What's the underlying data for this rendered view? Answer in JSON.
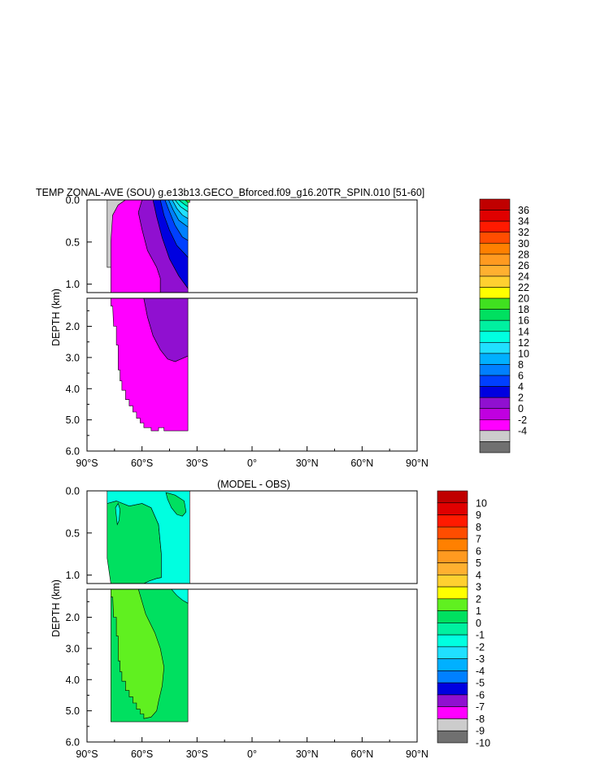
{
  "title": "TEMP ZONAL-AVE (SOU) g.e13b13.GECO_Bforced.f09_g16.20TR_SPIN.010 [51-60]",
  "chart_data": [
    {
      "type": "contour",
      "title": "TEMP ZONAL-AVE (SOU) g.e13b13.GECO_Bforced.f09_g16.20TR_SPIN.010 [51-60]",
      "ylabel": "DEPTH (km)",
      "x_ticks": [
        "90°S",
        "60°S",
        "30°S",
        "0°",
        "30°N",
        "60°N",
        "90°N"
      ],
      "y_ticks_upper": [
        "0.0",
        "0.5",
        "1.0"
      ],
      "y_ticks_lower": [
        "2.0",
        "3.0",
        "4.0",
        "5.0",
        "6.0"
      ],
      "xlim": [
        -90,
        90
      ],
      "ylim_upper": [
        0,
        1.1
      ],
      "ylim_lower": [
        1.1,
        6.0
      ],
      "colorbar_levels": [
        "36",
        "34",
        "32",
        "30",
        "28",
        "26",
        "24",
        "22",
        "20",
        "18",
        "16",
        "14",
        "12",
        "10",
        "8",
        "6",
        "4",
        "2",
        "0",
        "-2",
        "-4"
      ],
      "colorbar_colors": [
        "#c00000",
        "#e00000",
        "#ff1a00",
        "#ff4d00",
        "#ff8000",
        "#ff9a20",
        "#ffb030",
        "#ffd030",
        "#ffff00",
        "#40e020",
        "#00e060",
        "#00f0a0",
        "#00ffe0",
        "#20e0ff",
        "#00b0ff",
        "#0080ff",
        "#0040ff",
        "#0000e0",
        "#9010d0",
        "#c000e0",
        "#ff00ff",
        "#cccccc",
        "#707070"
      ],
      "regions_upper": [
        {
          "level": "-2 to 0",
          "color": "#cccccc",
          "points": [
            [
              -79,
              0
            ],
            [
              -69,
              0
            ],
            [
              -73,
              0.06
            ],
            [
              -76,
              0.18
            ],
            [
              -76,
              0.8
            ],
            [
              -79,
              0.8
            ]
          ]
        },
        {
          "level": "0 to 2",
          "color": "#ff00ff",
          "points": [
            [
              -69,
              0
            ],
            [
              -60,
              0
            ],
            [
              -62,
              0.15
            ],
            [
              -60,
              0.35
            ],
            [
              -57,
              0.6
            ],
            [
              -52,
              0.8
            ],
            [
              -50,
              0.93
            ],
            [
              -50,
              1.1
            ],
            [
              -77,
              1.1
            ],
            [
              -77,
              0.5
            ],
            [
              -76,
              0.18
            ],
            [
              -73,
              0.06
            ]
          ]
        },
        {
          "level": "2 to 4",
          "color": "#9010d0",
          "points": [
            [
              -60,
              0
            ],
            [
              -54,
              0
            ],
            [
              -52,
              0.2
            ],
            [
              -49,
              0.45
            ],
            [
              -45,
              0.7
            ],
            [
              -40,
              0.9
            ],
            [
              -35,
              1.05
            ],
            [
              -35,
              1.1
            ],
            [
              -50,
              1.1
            ],
            [
              -50,
              0.93
            ],
            [
              -52,
              0.8
            ],
            [
              -57,
              0.6
            ],
            [
              -60,
              0.35
            ],
            [
              -62,
              0.15
            ]
          ]
        },
        {
          "level": "4 to 6",
          "color": "#0000e0",
          "points": [
            [
              -54,
              0
            ],
            [
              -50,
              0
            ],
            [
              -48,
              0.18
            ],
            [
              -45,
              0.36
            ],
            [
              -41,
              0.54
            ],
            [
              -35,
              0.68
            ],
            [
              -35,
              1.05
            ],
            [
              -40,
              0.9
            ],
            [
              -45,
              0.7
            ],
            [
              -49,
              0.45
            ],
            [
              -52,
              0.2
            ]
          ]
        },
        {
          "level": "6 to 8",
          "color": "#0040ff",
          "points": [
            [
              -50,
              0
            ],
            [
              -47.5,
              0
            ],
            [
              -45,
              0.14
            ],
            [
              -42,
              0.3
            ],
            [
              -38,
              0.44
            ],
            [
              -35,
              0.48
            ],
            [
              -35,
              0.68
            ],
            [
              -41,
              0.54
            ],
            [
              -45,
              0.36
            ],
            [
              -48,
              0.18
            ]
          ]
        },
        {
          "level": "8 to 10",
          "color": "#0080ff",
          "points": [
            [
              -47.5,
              0
            ],
            [
              -45.5,
              0
            ],
            [
              -43,
              0.12
            ],
            [
              -40,
              0.24
            ],
            [
              -35,
              0.32
            ],
            [
              -35,
              0.48
            ],
            [
              -38,
              0.44
            ],
            [
              -42,
              0.3
            ],
            [
              -45,
              0.14
            ]
          ]
        },
        {
          "level": "10 to 12",
          "color": "#00b0ff",
          "points": [
            [
              -45.5,
              0
            ],
            [
              -43.5,
              0
            ],
            [
              -41,
              0.1
            ],
            [
              -38,
              0.18
            ],
            [
              -35,
              0.22
            ],
            [
              -35,
              0.32
            ],
            [
              -40,
              0.24
            ],
            [
              -43,
              0.12
            ]
          ]
        },
        {
          "level": "12 to 14",
          "color": "#20e0ff",
          "points": [
            [
              -43.5,
              0
            ],
            [
              -42,
              0
            ],
            [
              -39,
              0.08
            ],
            [
              -35,
              0.14
            ],
            [
              -35,
              0.22
            ],
            [
              -38,
              0.18
            ],
            [
              -41,
              0.1
            ]
          ]
        },
        {
          "level": "14 to 16",
          "color": "#00ffe0",
          "points": [
            [
              -42,
              0
            ],
            [
              -40,
              0
            ],
            [
              -37,
              0.05
            ],
            [
              -35,
              0.08
            ],
            [
              -35,
              0.14
            ],
            [
              -39,
              0.08
            ]
          ]
        },
        {
          "level": "16 to 18",
          "color": "#00f0a0",
          "points": [
            [
              -40,
              0
            ],
            [
              -36.5,
              0
            ],
            [
              -35,
              0.03
            ],
            [
              -35,
              0.08
            ],
            [
              -37,
              0.05
            ]
          ]
        },
        {
          "level": "18 to 20",
          "color": "#40e020",
          "points": [
            [
              -36.5,
              0
            ],
            [
              -34,
              0
            ],
            [
              -34,
              0.03
            ],
            [
              -35,
              0.03
            ]
          ]
        }
      ],
      "regions_lower": [
        {
          "level": "0 to 2",
          "color": "#ff00ff",
          "points": [
            [
              -77,
              1.1
            ],
            [
              -59,
              1.1
            ],
            [
              -57,
              1.7
            ],
            [
              -54,
              2.3
            ],
            [
              -50,
              2.75
            ],
            [
              -46,
              3.05
            ],
            [
              -42,
              3.13
            ],
            [
              -35,
              2.95
            ],
            [
              -35,
              5.35
            ],
            [
              -48,
              5.35
            ],
            [
              -48,
              5.25
            ],
            [
              -51,
              5.25
            ],
            [
              -51,
              5.35
            ],
            [
              -55,
              5.35
            ],
            [
              -55,
              5.25
            ],
            [
              -59,
              5.25
            ],
            [
              -59,
              5.1
            ],
            [
              -61,
              5.1
            ],
            [
              -61,
              4.95
            ],
            [
              -63,
              4.95
            ],
            [
              -63,
              4.75
            ],
            [
              -65,
              4.75
            ],
            [
              -65,
              4.55
            ],
            [
              -67,
              4.55
            ],
            [
              -67,
              4.35
            ],
            [
              -69,
              4.35
            ],
            [
              -69,
              4.05
            ],
            [
              -71,
              4.05
            ],
            [
              -71,
              3.75
            ],
            [
              -72,
              3.75
            ],
            [
              -72,
              3.4
            ],
            [
              -73,
              3.4
            ],
            [
              -73,
              2.6
            ],
            [
              -74,
              2.6
            ],
            [
              -74,
              2.0
            ],
            [
              -75.5,
              2.0
            ],
            [
              -76,
              1.35
            ],
            [
              -77,
              1.35
            ]
          ]
        },
        {
          "level": "2 to 4",
          "color": "#9010d0",
          "points": [
            [
              -59,
              1.1
            ],
            [
              -35,
              1.1
            ],
            [
              -35,
              2.95
            ],
            [
              -42,
              3.13
            ],
            [
              -46,
              3.05
            ],
            [
              -50,
              2.75
            ],
            [
              -54,
              2.3
            ],
            [
              -57,
              1.7
            ]
          ]
        }
      ]
    },
    {
      "type": "contour",
      "title": "(MODEL - OBS)",
      "ylabel": "DEPTH (km)",
      "x_ticks": [
        "90°S",
        "60°S",
        "30°S",
        "0°",
        "30°N",
        "60°N",
        "90°N"
      ],
      "y_ticks_upper": [
        "0.0",
        "0.5",
        "1.0"
      ],
      "y_ticks_lower": [
        "2.0",
        "3.0",
        "4.0",
        "5.0",
        "6.0"
      ],
      "xlim": [
        -90,
        90
      ],
      "ylim_upper": [
        0,
        1.1
      ],
      "ylim_lower": [
        1.1,
        6.0
      ],
      "colorbar_levels": [
        "10",
        "9",
        "8",
        "7",
        "6",
        "5",
        "4",
        "3",
        "2",
        "1",
        "0",
        "-1",
        "-2",
        "-3",
        "-4",
        "-5",
        "-6",
        "-7",
        "-8",
        "-9",
        "-10"
      ],
      "colorbar_colors": [
        "#c00000",
        "#e00000",
        "#ff1a00",
        "#ff4d00",
        "#ff8000",
        "#ff9a20",
        "#ffb030",
        "#ffd030",
        "#ffff00",
        "#60f020",
        "#00e060",
        "#00f0a0",
        "#00ffe0",
        "#20e0ff",
        "#00b0ff",
        "#0080ff",
        "#0000e0",
        "#9010d0",
        "#ff00ff",
        "#cccccc",
        "#707070"
      ],
      "regions_upper": [
        {
          "level": "0 to 1",
          "color": "#00e060",
          "points": [
            [
              -79,
              0.15
            ],
            [
              -74,
              0.12
            ],
            [
              -67,
              0.18
            ],
            [
              -60,
              0.15
            ],
            [
              -55,
              0.2
            ],
            [
              -51,
              0.4
            ],
            [
              -49.5,
              0.75
            ],
            [
              -49.5,
              1.03
            ],
            [
              -52,
              1.04
            ],
            [
              -56,
              1.07
            ],
            [
              -59,
              1.1
            ],
            [
              -77,
              1.1
            ],
            [
              -79,
              0.8
            ]
          ]
        },
        {
          "level": "-1 to 0",
          "color": "#00ffe0",
          "points": [
            [
              -79,
              0
            ],
            [
              -34,
              0
            ],
            [
              -34,
              1.1
            ],
            [
              -59,
              1.1
            ],
            [
              -56,
              1.07
            ],
            [
              -52,
              1.04
            ],
            [
              -49.5,
              1.03
            ],
            [
              -49.5,
              0.75
            ],
            [
              -51,
              0.4
            ],
            [
              -55,
              0.2
            ],
            [
              -60,
              0.15
            ],
            [
              -67,
              0.18
            ],
            [
              -74,
              0.12
            ],
            [
              -79,
              0.15
            ]
          ]
        },
        {
          "level": "-1 to 0 (patch)",
          "color": "#00ffe0",
          "points": [
            [
              -74.5,
              0.2
            ],
            [
              -73,
              0.15
            ],
            [
              -72,
              0.22
            ],
            [
              -72.5,
              0.35
            ],
            [
              -73.5,
              0.4
            ]
          ]
        },
        {
          "level": "0 to 1 (patch)",
          "color": "#00e060",
          "points": [
            [
              -47,
              0.02
            ],
            [
              -42,
              0.05
            ],
            [
              -37,
              0.12
            ],
            [
              -36,
              0.25
            ],
            [
              -38,
              0.3
            ],
            [
              -41,
              0.28
            ],
            [
              -44,
              0.2
            ],
            [
              -46,
              0.1
            ]
          ]
        }
      ],
      "regions_lower": [
        {
          "level": "0 to 1",
          "color": "#00e060",
          "points": [
            [
              -77,
              1.1
            ],
            [
              -35,
              1.1
            ],
            [
              -35,
              5.35
            ],
            [
              -77,
              5.35
            ]
          ]
        },
        {
          "level": "1 to 2",
          "color": "#60f020",
          "points": [
            [
              -77,
              1.1
            ],
            [
              -62,
              1.1
            ],
            [
              -58,
              1.9
            ],
            [
              -53,
              2.5
            ],
            [
              -50,
              3.0
            ],
            [
              -48,
              3.6
            ],
            [
              -49,
              4.2
            ],
            [
              -51,
              4.7
            ],
            [
              -52,
              5.0
            ],
            [
              -55,
              5.2
            ],
            [
              -59,
              5.25
            ],
            [
              -59,
              5.1
            ],
            [
              -61,
              5.1
            ],
            [
              -61,
              4.95
            ],
            [
              -63,
              4.95
            ],
            [
              -63,
              4.75
            ],
            [
              -65,
              4.75
            ],
            [
              -65,
              4.55
            ],
            [
              -67,
              4.55
            ],
            [
              -67,
              4.35
            ],
            [
              -69,
              4.35
            ],
            [
              -69,
              4.05
            ],
            [
              -71,
              4.05
            ],
            [
              -71,
              3.75
            ],
            [
              -72,
              3.75
            ],
            [
              -72,
              3.4
            ],
            [
              -73,
              3.4
            ],
            [
              -73,
              2.6
            ],
            [
              -74,
              2.6
            ],
            [
              -74,
              2.0
            ],
            [
              -75.5,
              2.0
            ],
            [
              -76,
              1.35
            ],
            [
              -77,
              1.35
            ]
          ]
        },
        {
          "level": "-1 to 0",
          "color": "#00ffe0",
          "points": [
            [
              -44,
              1.1
            ],
            [
              -35,
              1.1
            ],
            [
              -35,
              1.55
            ],
            [
              -38,
              1.45
            ],
            [
              -41,
              1.3
            ]
          ]
        }
      ]
    }
  ]
}
